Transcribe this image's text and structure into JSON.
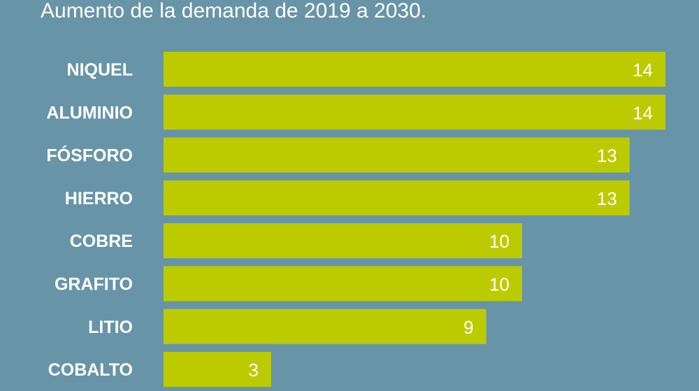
{
  "chart_data": {
    "type": "bar",
    "orientation": "horizontal",
    "title": "Aumento de la demanda de 2019 a 2030.",
    "categories": [
      "NIQUEL",
      "ALUMINIO",
      "FÓSFORO",
      "HIERRO",
      "COBRE",
      "GRAFITO",
      "LITIO",
      "COBALTO"
    ],
    "values": [
      14,
      14,
      13,
      13,
      10,
      10,
      9,
      3
    ],
    "data_labels": [
      "14",
      "14",
      "13",
      "13",
      "10",
      "10",
      "9",
      "3"
    ],
    "xlim": [
      0,
      14
    ],
    "grid": false,
    "legend": "none",
    "colors": {
      "background": "#6894a8",
      "bar": "#bccb00",
      "text": "#ffffff"
    }
  }
}
